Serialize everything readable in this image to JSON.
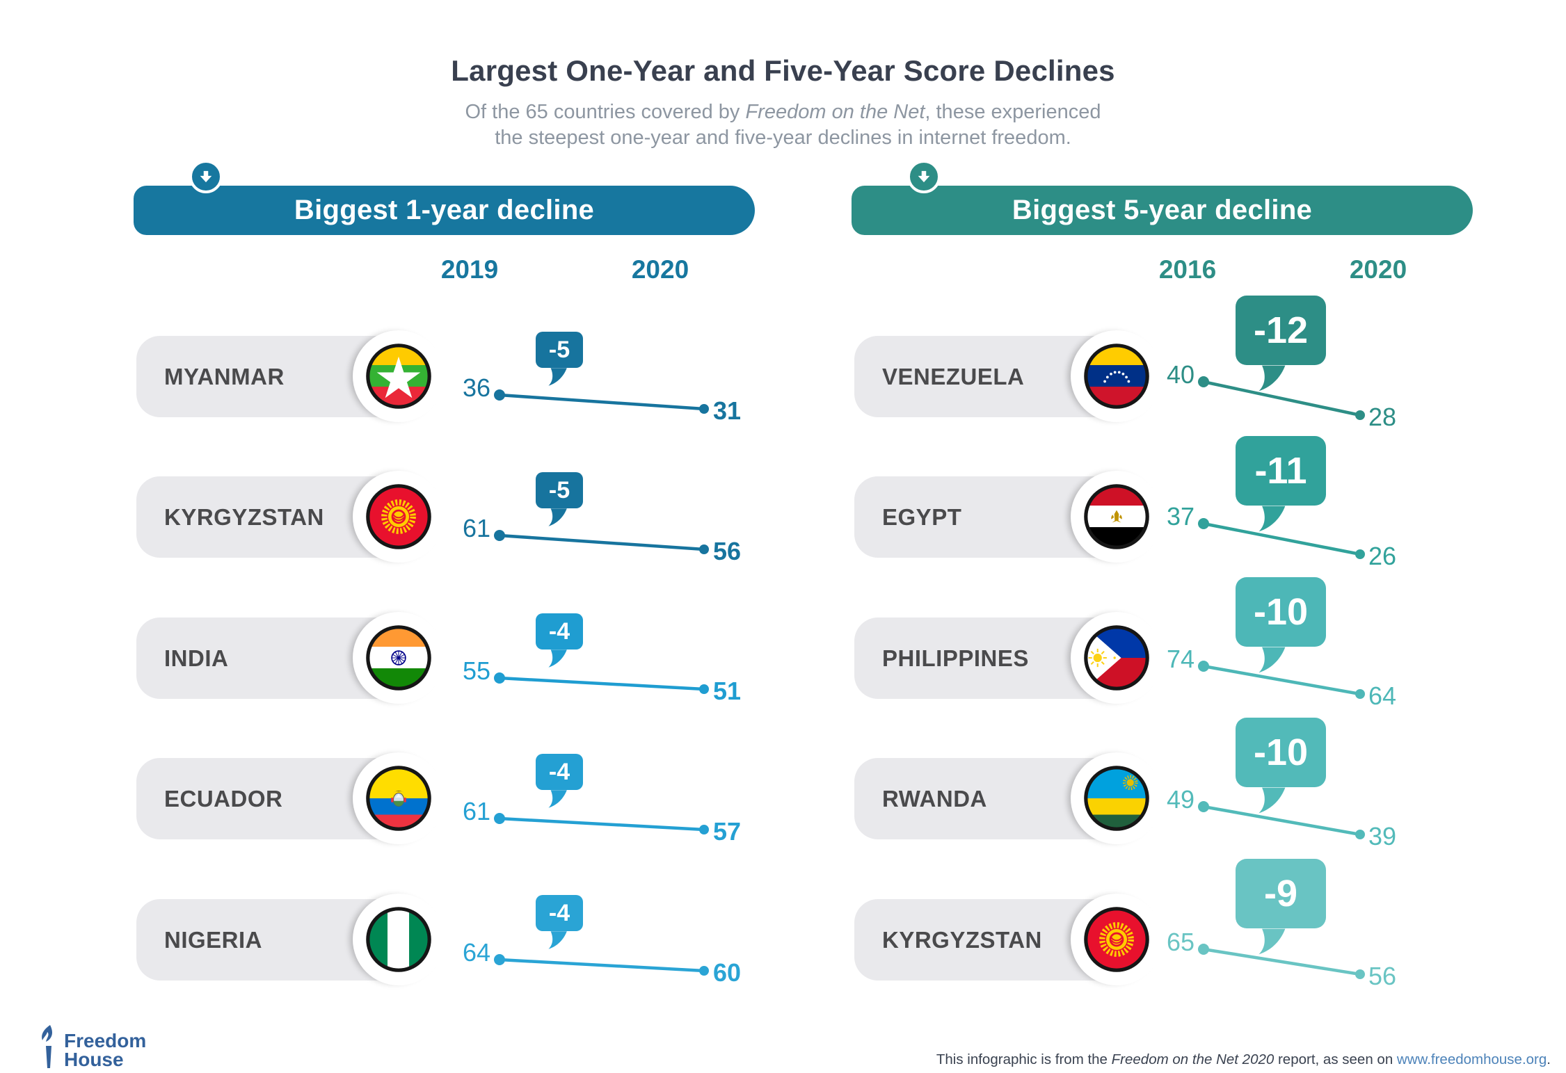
{
  "title": "Largest One-Year and Five-Year Score Declines",
  "subtitle": {
    "line1_pre": "Of the 65 countries covered by ",
    "line1_italic": "Freedom on the Net",
    "line1_post": ", these experienced",
    "line2": "the steepest one-year and five-year declines in internet freedom."
  },
  "icons": {
    "down_arrow": "circled white down-arrow",
    "torch": "Freedom House torch mark",
    "flags": [
      "myanmar",
      "kyrgyzstan",
      "india",
      "ecuador",
      "nigeria",
      "venezuela",
      "egypt",
      "philippines",
      "rwanda",
      "kyrgyzstan"
    ]
  },
  "palette": {
    "title_text": "#39404f",
    "subtitle_text": "#8d96a1",
    "country_text": "#4a4a4c",
    "pill_gray": "#e9e9ec",
    "one_year_accent": "#17779f",
    "five_year_accent": "#2d8e86",
    "footer_text": "#3a4250",
    "footer_link": "#4d83b9",
    "logo_blue": "#33619b"
  },
  "panels": {
    "one_year": {
      "header": "Biggest 1-year decline",
      "accent": "#17779f",
      "col1": "2019",
      "col2": "2020",
      "rows": [
        {
          "country": "MYANMAR",
          "start": 36,
          "end": 31,
          "delta": "-5",
          "color": "#17749e"
        },
        {
          "country": "KYRGYZSTAN",
          "start": 61,
          "end": 56,
          "delta": "-5",
          "color": "#17749e"
        },
        {
          "country": "INDIA",
          "start": 55,
          "end": 51,
          "delta": "-4",
          "color": "#1f9dd1"
        },
        {
          "country": "ECUADOR",
          "start": 61,
          "end": 57,
          "delta": "-4",
          "color": "#24a0d3"
        },
        {
          "country": "NIGERIA",
          "start": 64,
          "end": 60,
          "delta": "-4",
          "color": "#2aa4d5"
        }
      ]
    },
    "five_year": {
      "header": "Biggest 5-year decline",
      "accent": "#2d8e86",
      "col1": "2016",
      "col2": "2020",
      "rows": [
        {
          "country": "VENEZUELA",
          "start": 40,
          "end": 28,
          "delta": "-12",
          "color": "#2d8e86"
        },
        {
          "country": "EGYPT",
          "start": 37,
          "end": 26,
          "delta": "-11",
          "color": "#31a29b"
        },
        {
          "country": "PHILIPPINES",
          "start": 74,
          "end": 64,
          "delta": "-10",
          "color": "#4db7b7"
        },
        {
          "country": "RWANDA",
          "start": 49,
          "end": 39,
          "delta": "-10",
          "color": "#52bab9"
        },
        {
          "country": "KYRGYZSTAN",
          "start": 65,
          "end": 56,
          "delta": "-9",
          "color": "#69c4c3"
        }
      ]
    }
  },
  "footer": {
    "logo_line1": "Freedom",
    "logo_line2": "House",
    "note": {
      "pre": "This infographic is from the ",
      "italic": "Freedom on the Net 2020",
      "mid": " report, as seen on ",
      "link": "www.freedomhouse.org",
      "post": "."
    }
  },
  "chart_data": [
    {
      "type": "line",
      "title": "Biggest 1-year decline",
      "x": [
        "2019",
        "2020"
      ],
      "series": [
        {
          "name": "Myanmar",
          "values": [
            36,
            31
          ],
          "change": -5
        },
        {
          "name": "Kyrgyzstan",
          "values": [
            61,
            56
          ],
          "change": -5
        },
        {
          "name": "India",
          "values": [
            55,
            51
          ],
          "change": -4
        },
        {
          "name": "Ecuador",
          "values": [
            61,
            57
          ],
          "change": -4
        },
        {
          "name": "Nigeria",
          "values": [
            64,
            60
          ],
          "change": -4
        }
      ],
      "legend_position": "none",
      "grid": false
    },
    {
      "type": "line",
      "title": "Biggest 5-year decline",
      "x": [
        "2016",
        "2020"
      ],
      "series": [
        {
          "name": "Venezuela",
          "values": [
            40,
            28
          ],
          "change": -12
        },
        {
          "name": "Egypt",
          "values": [
            37,
            26
          ],
          "change": -11
        },
        {
          "name": "Philippines",
          "values": [
            74,
            64
          ],
          "change": -10
        },
        {
          "name": "Rwanda",
          "values": [
            49,
            39
          ],
          "change": -10
        },
        {
          "name": "Kyrgyzstan",
          "values": [
            65,
            56
          ],
          "change": -9
        }
      ],
      "legend_position": "none",
      "grid": false
    }
  ]
}
